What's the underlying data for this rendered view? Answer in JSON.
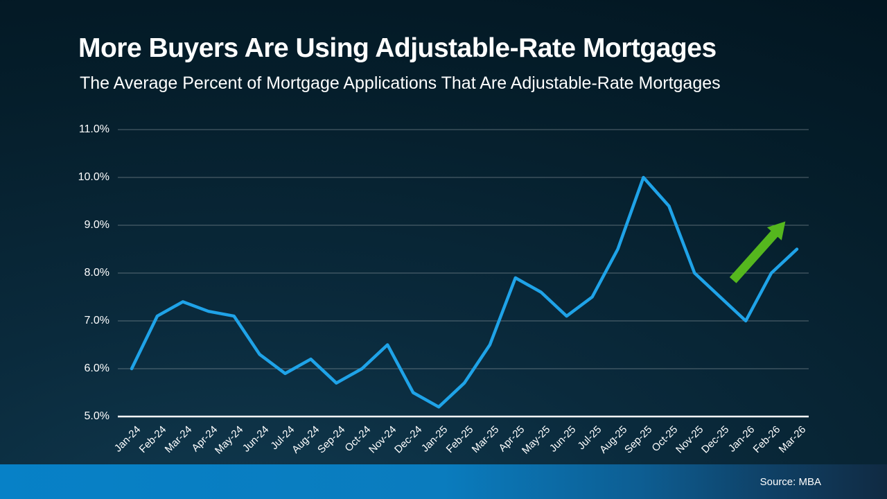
{
  "header": {
    "title": "More Buyers Are Using Adjustable-Rate Mortgages",
    "subtitle": "The Average Percent of Mortgage Applications That Are Adjustable-Rate Mortgages"
  },
  "footer": {
    "source": "Source: MBA"
  },
  "colors": {
    "background_dark": "#03121c",
    "line": "#1fa3e8",
    "arrow": "#55b71e",
    "gridline": "#9aa4aa",
    "axis_line": "#ffffff",
    "footer_gradient_left": "#0781c7",
    "footer_gradient_right": "#102a42",
    "text": "#ffffff"
  },
  "chart_data": {
    "type": "line",
    "title": "More Buyers Are Using Adjustable-Rate Mortgages",
    "subtitle": "The Average Percent of Mortgage Applications That Are Adjustable-Rate Mortgages",
    "xlabel": "",
    "ylabel": "",
    "x": [
      "Jan-24",
      "Feb-24",
      "Mar-24",
      "Apr-24",
      "May-24",
      "Jun-24",
      "Jul-24",
      "Aug-24",
      "Sep-24",
      "Oct-24",
      "Nov-24",
      "Dec-24",
      "Jan-25",
      "Feb-25",
      "Mar-25",
      "Apr-25",
      "May-25",
      "Jun-25",
      "Jul-25",
      "Aug-25",
      "Sep-25",
      "Oct-25",
      "Nov-25",
      "Dec-25",
      "Jan-26",
      "Feb-26",
      "Mar-26"
    ],
    "series": [
      {
        "name": "Percent of mortgage applications that are adjustable-rate",
        "values": [
          6.0,
          7.1,
          7.4,
          7.2,
          7.1,
          6.3,
          5.9,
          6.2,
          5.7,
          6.0,
          6.5,
          5.5,
          5.2,
          5.7,
          6.5,
          7.9,
          7.6,
          7.1,
          7.5,
          8.5,
          10.0,
          9.4,
          8.0,
          7.5,
          7.0,
          8.0,
          8.5
        ]
      }
    ],
    "ylim": [
      5.0,
      11.0
    ],
    "ytick_labels": [
      "5.0%",
      "6.0%",
      "7.0%",
      "8.0%",
      "9.0%",
      "10.0%",
      "11.0%"
    ],
    "ytick_values": [
      5.0,
      6.0,
      7.0,
      8.0,
      9.0,
      10.0,
      11.0
    ],
    "grid": true,
    "legend": "none",
    "annotations": [
      {
        "type": "arrow",
        "meaning": "upward-trend",
        "color": "#55b71e",
        "from": {
          "x_index": 23.5,
          "value": 7.85
        },
        "to": {
          "x_index": 25.55,
          "value": 9.08
        }
      }
    ]
  }
}
